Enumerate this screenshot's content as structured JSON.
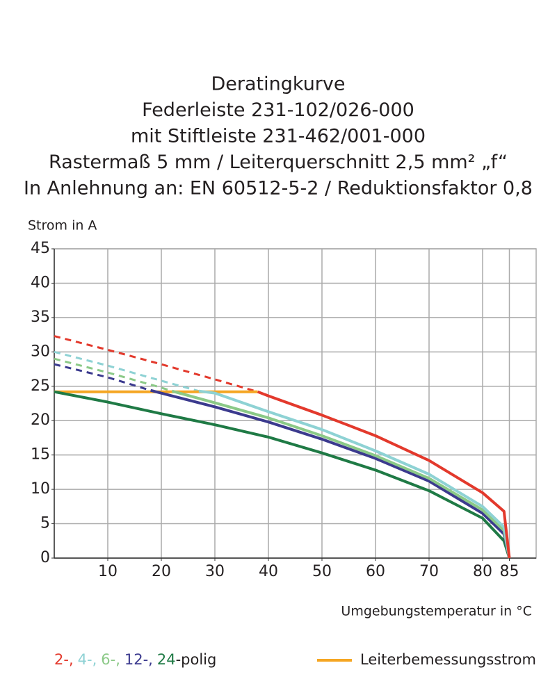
{
  "chart_data": {
    "type": "line",
    "title": [
      "Deratingkurve",
      "Federleiste 231-102/026-000",
      "mit Stiftleiste 231-462/001-000",
      "Rastermaß 5 mm / Leiterquerschnitt 2,5 mm² „f“",
      "In Anlehnung an: EN 60512-5-2 / Reduktionsfaktor 0,8"
    ],
    "y_label": "Strom in A",
    "x_label": "Umgebungstemperatur in °C",
    "xlim": [
      0,
      90
    ],
    "xticks": [
      10,
      20,
      30,
      40,
      50,
      60,
      70,
      80,
      85
    ],
    "ylim": [
      0,
      45
    ],
    "yticks": [
      0,
      5,
      10,
      15,
      20,
      25,
      30,
      35,
      40,
      45
    ],
    "grid": true,
    "legend_suffix": "-polig",
    "series": [
      {
        "name": "2-,",
        "color": "#e3392c",
        "dashed": {
          "x": [
            0,
            10,
            20,
            30,
            38
          ],
          "values": [
            32.3,
            30.3,
            28.2,
            26.0,
            24.2
          ]
        },
        "x": [
          38,
          40,
          50,
          60,
          70,
          80,
          84,
          85
        ],
        "values": [
          24.2,
          23.6,
          20.8,
          17.8,
          14.2,
          9.5,
          6.8,
          0
        ]
      },
      {
        "name": "4-,",
        "color": "#8ed2d4",
        "dashed": {
          "x": [
            0,
            10,
            20,
            27
          ],
          "values": [
            30.0,
            28.0,
            25.8,
            24.3
          ]
        },
        "x": [
          27,
          30,
          40,
          50,
          60,
          70,
          80,
          84,
          85
        ],
        "values": [
          24.3,
          24.0,
          21.3,
          18.7,
          15.6,
          12.2,
          7.5,
          4.5,
          0
        ]
      },
      {
        "name": "6-,",
        "color": "#8bc987",
        "dashed": {
          "x": [
            0,
            10,
            20,
            22
          ],
          "values": [
            29.0,
            27.0,
            24.8,
            24.3
          ]
        },
        "x": [
          22,
          30,
          40,
          50,
          60,
          70,
          80,
          84,
          85
        ],
        "values": [
          24.3,
          22.6,
          20.4,
          17.8,
          14.9,
          11.6,
          7.0,
          4.0,
          0
        ]
      },
      {
        "name": "12-,",
        "color": "#3b3a8e",
        "dashed": {
          "x": [
            0,
            10,
            18
          ],
          "values": [
            28.2,
            26.3,
            24.4
          ]
        },
        "x": [
          18,
          20,
          30,
          40,
          50,
          60,
          70,
          80,
          84,
          85
        ],
        "values": [
          24.4,
          24.0,
          22.0,
          19.8,
          17.3,
          14.5,
          11.2,
          6.5,
          3.5,
          0
        ]
      },
      {
        "name": "24",
        "color": "#1f7a45",
        "x": [
          0,
          10,
          20,
          30,
          40,
          50,
          60,
          70,
          80,
          84,
          85
        ],
        "values": [
          24.2,
          22.7,
          21.0,
          19.4,
          17.6,
          15.3,
          12.8,
          9.8,
          5.8,
          2.5,
          0
        ]
      }
    ],
    "rated_current": {
      "name": "Leiterbemessungsstrom",
      "color": "#f5a623",
      "x": [
        0,
        38
      ],
      "values": [
        24.2,
        24.2
      ]
    }
  }
}
